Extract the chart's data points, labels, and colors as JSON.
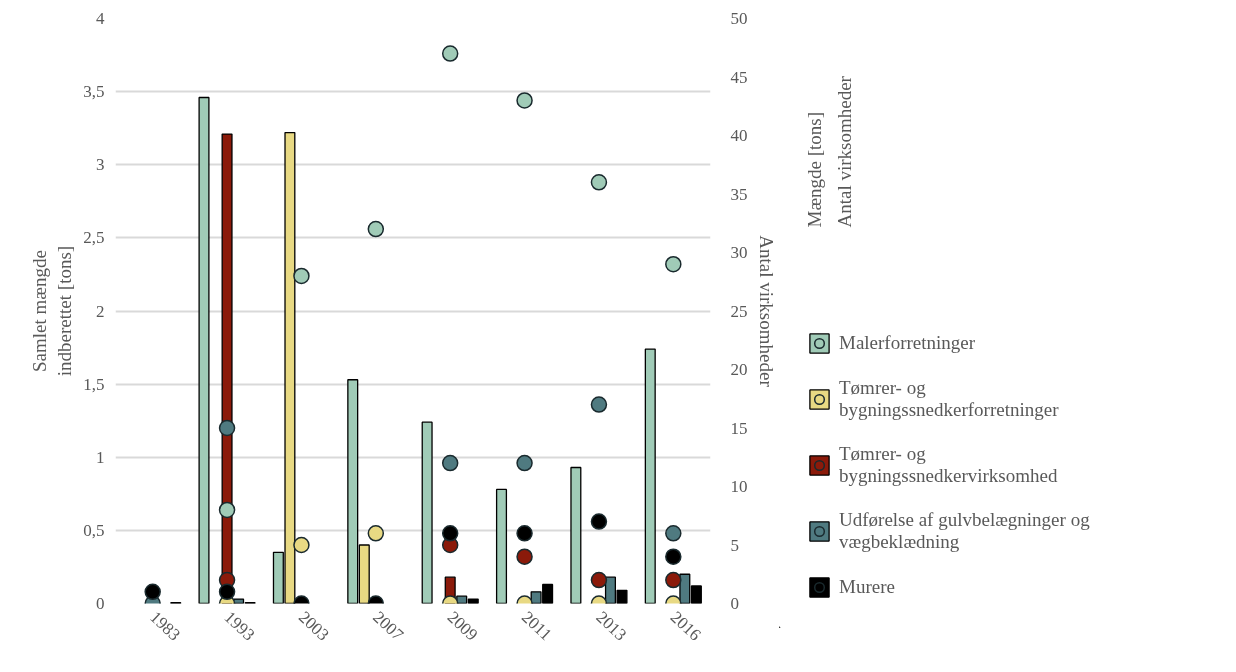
{
  "chart_data": {
    "type": "bar",
    "ylabel": "Samlet mængde\nindberettet [tons]",
    "y2label": "Antal virksomheder",
    "legend_title": "Mængde [tons]\nAntal virksomheder",
    "categories": [
      "1983",
      "1993",
      "2003",
      "2007",
      "2009",
      "2011",
      "2013",
      "2016"
    ],
    "ylim": [
      0,
      4
    ],
    "yticks": [
      0,
      {
        "value": 0.5,
        "label": "0,5"
      },
      1,
      {
        "value": 1.5,
        "label": "1,5"
      },
      2,
      {
        "value": 2.5,
        "label": "2,5"
      },
      3,
      {
        "value": 3.5,
        "label": "3,5"
      },
      4
    ],
    "y2lim": [
      0,
      50
    ],
    "y2ticks": [
      0,
      5,
      10,
      15,
      20,
      25,
      30,
      35,
      40,
      45,
      50
    ],
    "grid": "y",
    "legend": "right",
    "marker": "circle",
    "series": [
      {
        "name": "Malerforretninger",
        "color": "#a0cbb7",
        "values": [
          null,
          3.46,
          0.35,
          1.53,
          1.24,
          0.78,
          0.93,
          1.74
        ]
      },
      {
        "name": "Tømrer- og bygningssnedkerforretninger",
        "color": "#e8d983",
        "values": [
          null,
          null,
          3.22,
          0.4,
          null,
          null,
          null,
          null
        ]
      },
      {
        "name": "Tømrer- og bygningssnedkervirksomhed",
        "color": "#8b1a0a",
        "values": [
          null,
          3.21,
          null,
          null,
          0.18,
          null,
          null,
          null
        ]
      },
      {
        "name": "Udførelse af gulvbelægninger og vægbeklædning",
        "color": "#4f7a80",
        "values": [
          null,
          0.03,
          null,
          null,
          0.05,
          0.08,
          0.18,
          0.2
        ]
      },
      {
        "name": "Murere",
        "color": "#000000",
        "values": [
          0.005,
          0.005,
          null,
          null,
          0.03,
          0.13,
          0.09,
          0.12
        ]
      },
      {
        "type": "scatter",
        "axis": "y2",
        "color": "#a0cbb7",
        "values": [
          null,
          8,
          28,
          32,
          47,
          43,
          36,
          29
        ]
      },
      {
        "type": "scatter",
        "axis": "y2",
        "color": "#e8d983",
        "values": [
          null,
          0,
          5,
          6,
          0,
          0,
          0,
          0
        ]
      },
      {
        "type": "scatter",
        "axis": "y2",
        "color": "#8b1a0a",
        "values": [
          null,
          2,
          null,
          null,
          5,
          4,
          2,
          2
        ]
      },
      {
        "type": "scatter",
        "axis": "y2",
        "color": "#4f7a80",
        "values": [
          0,
          15,
          null,
          null,
          12,
          12,
          17,
          6
        ]
      },
      {
        "type": "scatter",
        "axis": "y2",
        "color": "#000000",
        "values": [
          1,
          1,
          0,
          0,
          6,
          6,
          7,
          4
        ]
      }
    ]
  }
}
